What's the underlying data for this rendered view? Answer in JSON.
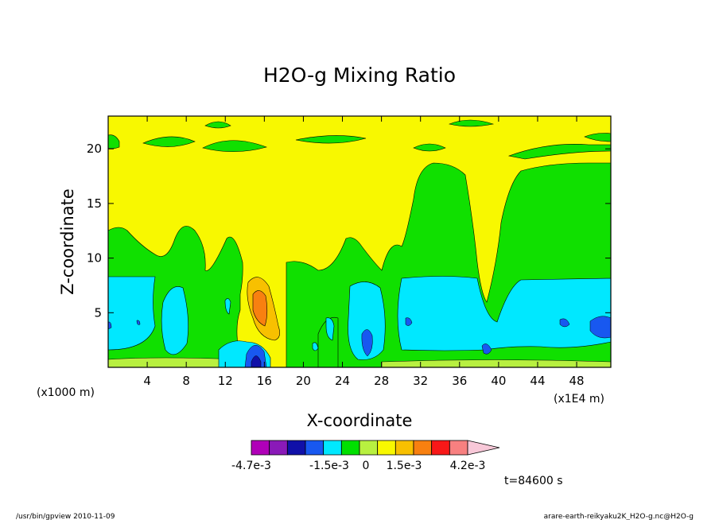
{
  "chart_data": {
    "type": "contour",
    "title": "H2O-g Mixing Ratio",
    "xlabel": "X-coordinate",
    "ylabel": "Z-coordinate",
    "x_units": "(x1000 m)",
    "x_scale_note": "(x1E4 m)",
    "xlim": [
      0,
      51.5
    ],
    "ylim": [
      0,
      23
    ],
    "x_ticks": [
      "4",
      "8",
      "12",
      "16",
      "20",
      "24",
      "28",
      "32",
      "36",
      "40",
      "44",
      "48"
    ],
    "y_ticks": [
      "5",
      "10",
      "15",
      "20"
    ],
    "colorbar": {
      "labels": [
        "-4.7e-3",
        "-1.5e-3",
        "0",
        "1.5e-3",
        "4.2e-3"
      ],
      "colors": [
        "#b000b8",
        "#8a1ab8",
        "#1010a8",
        "#1858f0",
        "#00e8ff",
        "#00e000",
        "#b8f040",
        "#f8f800",
        "#f8c000",
        "#f88010",
        "#f81818",
        "#f88080",
        "#f8c8d8"
      ]
    },
    "time_label": "t=84600 s"
  },
  "footer": {
    "left": "/usr/bin/gpview   2010-11-09",
    "right": "arare-earth-reikyaku2K_H2O-g.nc@H2O-g"
  }
}
